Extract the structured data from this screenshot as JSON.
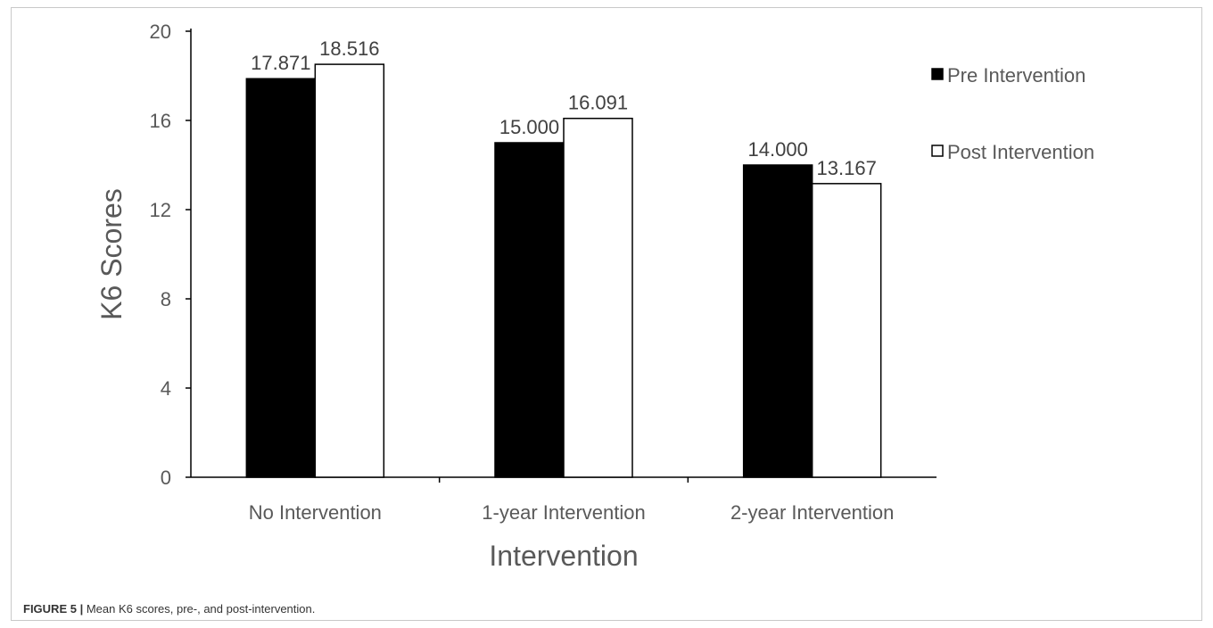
{
  "chart_data": {
    "type": "bar",
    "title": "",
    "xlabel": "Intervention",
    "ylabel": "K6 Scores",
    "categories": [
      "No Intervention",
      "1-year Intervention",
      "2-year Intervention"
    ],
    "series": [
      {
        "name": "Pre Intervention",
        "values": [
          17.871,
          15.0,
          14.0
        ],
        "labels": [
          "17.871",
          "15.000",
          "14.000"
        ],
        "color": "#000000"
      },
      {
        "name": "Post Intervention",
        "values": [
          18.516,
          16.091,
          13.167
        ],
        "labels": [
          "18.516",
          "16.091",
          "13.167"
        ],
        "color": "#ffffff"
      }
    ],
    "ylim": [
      0,
      20
    ],
    "yticks": [
      0,
      4,
      8,
      12,
      16,
      20
    ],
    "grid": false,
    "legend": "right",
    "bar_edge_color": "#000000"
  },
  "caption": {
    "label": "FIGURE 5 |",
    "text": "Mean K6 scores, pre-, and post-intervention."
  }
}
